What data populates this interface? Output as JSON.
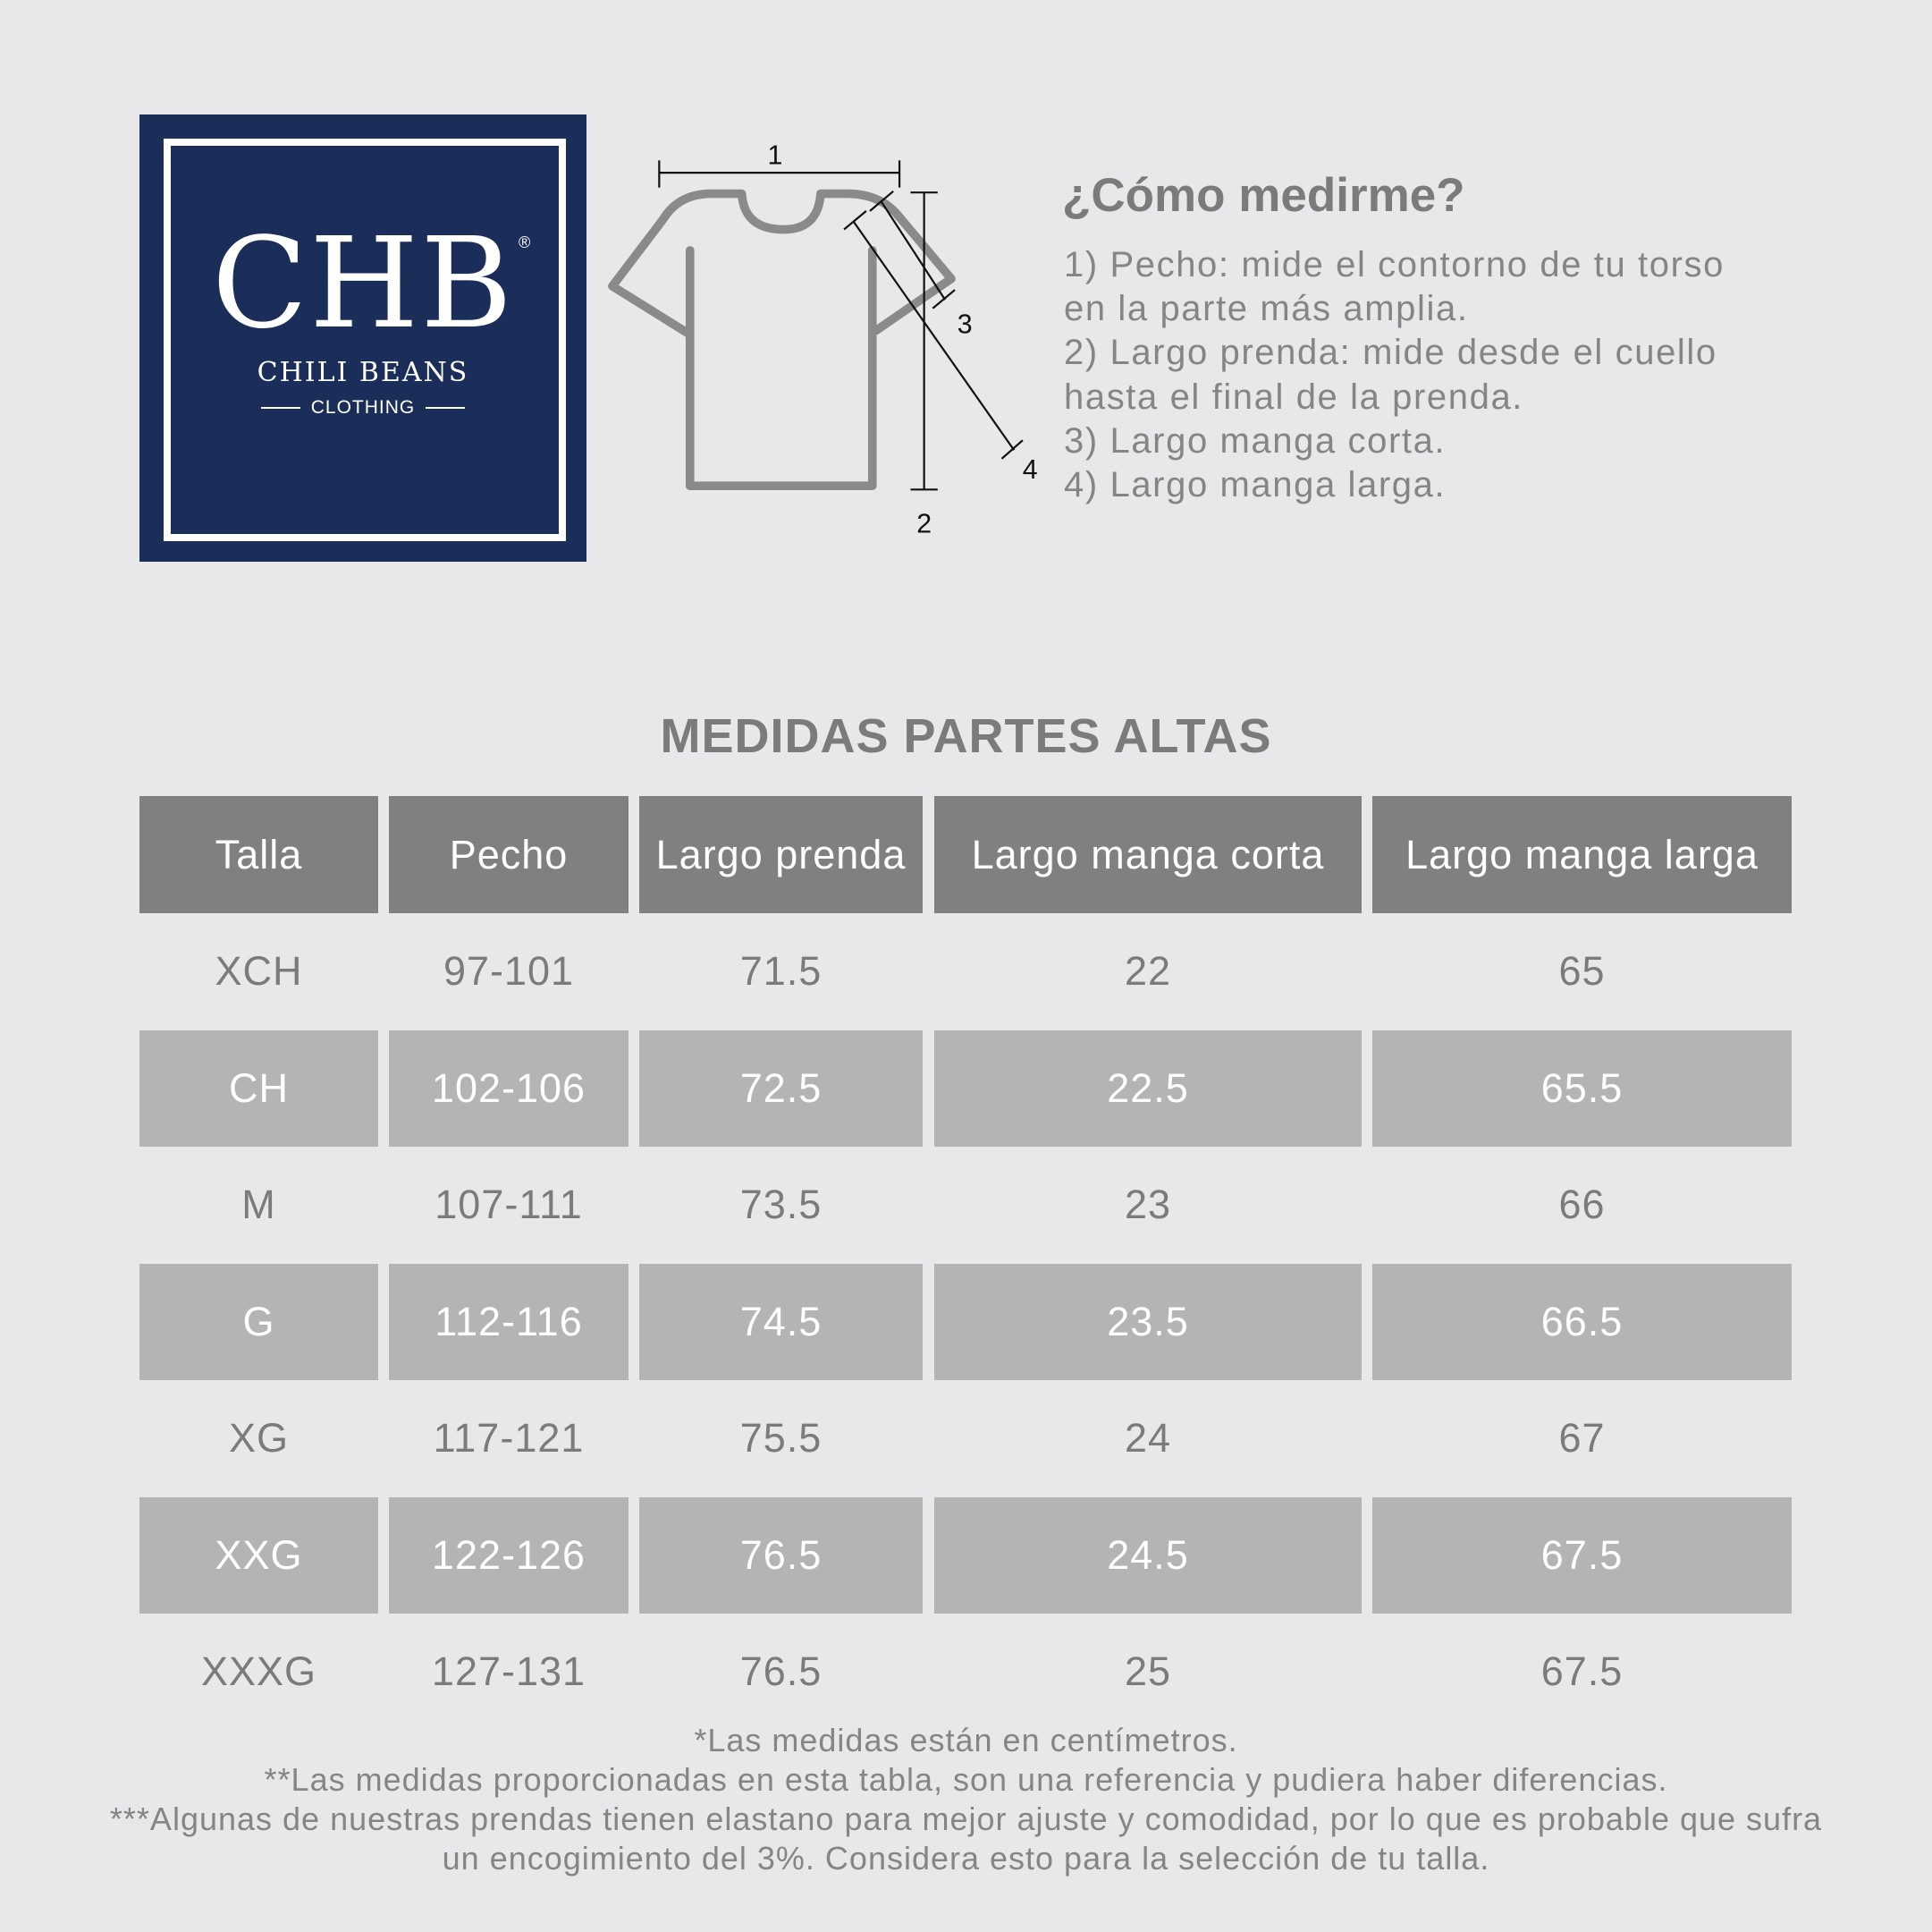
{
  "logo": {
    "mark": "CHB",
    "registered": "®",
    "name": "CHILI BEANS",
    "sub": "CLOTHING",
    "color": "#1b2d59"
  },
  "diagram": {
    "labels": [
      "1",
      "2",
      "3",
      "4"
    ]
  },
  "howto": {
    "title": "¿Cómo medirme?",
    "lines": [
      "1) Pecho: mide el contorno de tu torso",
      "en la parte más amplia.",
      "2) Largo prenda: mide desde el cuello",
      "hasta el final de la prenda.",
      "3) Largo manga corta.",
      "4) Largo manga larga."
    ]
  },
  "table": {
    "title": "MEDIDAS PARTES ALTAS",
    "headers": [
      "Talla",
      "Pecho",
      "Largo prenda",
      "Largo manga corta",
      "Largo manga larga"
    ],
    "rows": [
      [
        "XCH",
        "97-101",
        "71.5",
        "22",
        "65"
      ],
      [
        "CH",
        "102-106",
        "72.5",
        "22.5",
        "65.5"
      ],
      [
        "M",
        "107-111",
        "73.5",
        "23",
        "66"
      ],
      [
        "G",
        "112-116",
        "74.5",
        "23.5",
        "66.5"
      ],
      [
        "XG",
        "117-121",
        "75.5",
        "24",
        "67"
      ],
      [
        "XXG",
        "122-126",
        "76.5",
        "24.5",
        "67.5"
      ],
      [
        "XXXG",
        "127-131",
        "76.5",
        "25",
        "67.5"
      ]
    ],
    "header_color": "#808080",
    "stripe_color": "#b4b4b4"
  },
  "notes": [
    "*Las medidas están en centímetros.",
    "**Las medidas proporcionadas en esta tabla, son una referencia y pudiera haber diferencias.",
    "***Algunas de nuestras prendas tienen elastano para mejor ajuste y comodidad, por lo que es probable que sufra",
    "un encogimiento del 3%. Considera esto para la selección de tu talla."
  ]
}
